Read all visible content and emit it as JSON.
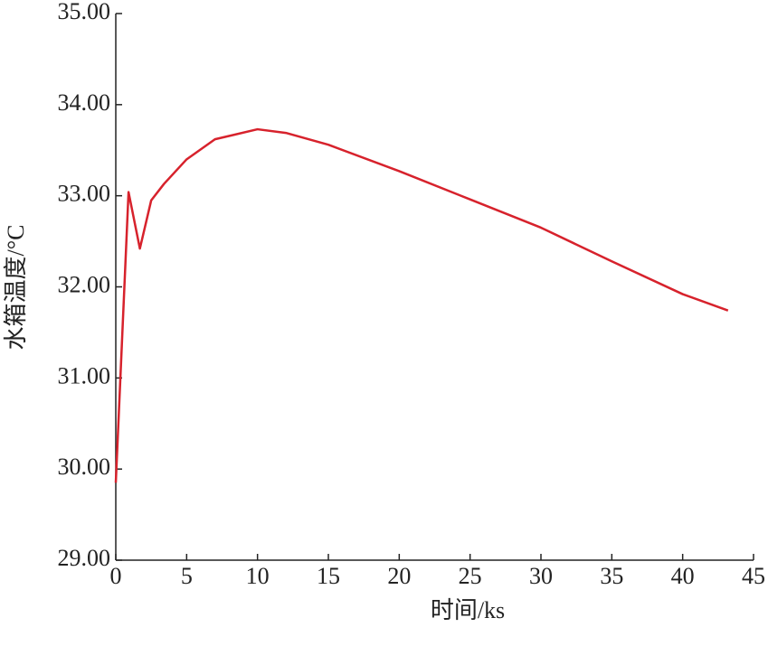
{
  "chart_data": {
    "type": "line",
    "x_label": "时间/ks",
    "y_label": "水箱温度/°C",
    "x": [
      0,
      0.9,
      1.7,
      2.5,
      3.4,
      5,
      7,
      10,
      12,
      15,
      20,
      25,
      30,
      35,
      40,
      43.2
    ],
    "values": [
      29.85,
      33.04,
      32.42,
      32.95,
      33.13,
      33.4,
      33.62,
      33.73,
      33.69,
      33.56,
      33.27,
      32.96,
      32.65,
      32.28,
      31.92,
      31.74
    ],
    "color": "#d7222c",
    "xlim": [
      0,
      45
    ],
    "ylim": [
      29,
      35
    ],
    "xticks": [
      0,
      5,
      10,
      15,
      20,
      25,
      30,
      35,
      40,
      45
    ],
    "yticks": [
      {
        "value": 29,
        "label": "29.00"
      },
      {
        "value": 30,
        "label": "30.00"
      },
      {
        "value": 31,
        "label": "31.00"
      },
      {
        "value": 32,
        "label": "32.00"
      },
      {
        "value": 33,
        "label": "33.00"
      },
      {
        "value": 34,
        "label": "34.00"
      },
      {
        "value": 35,
        "label": "35.00"
      }
    ],
    "grid": false
  }
}
